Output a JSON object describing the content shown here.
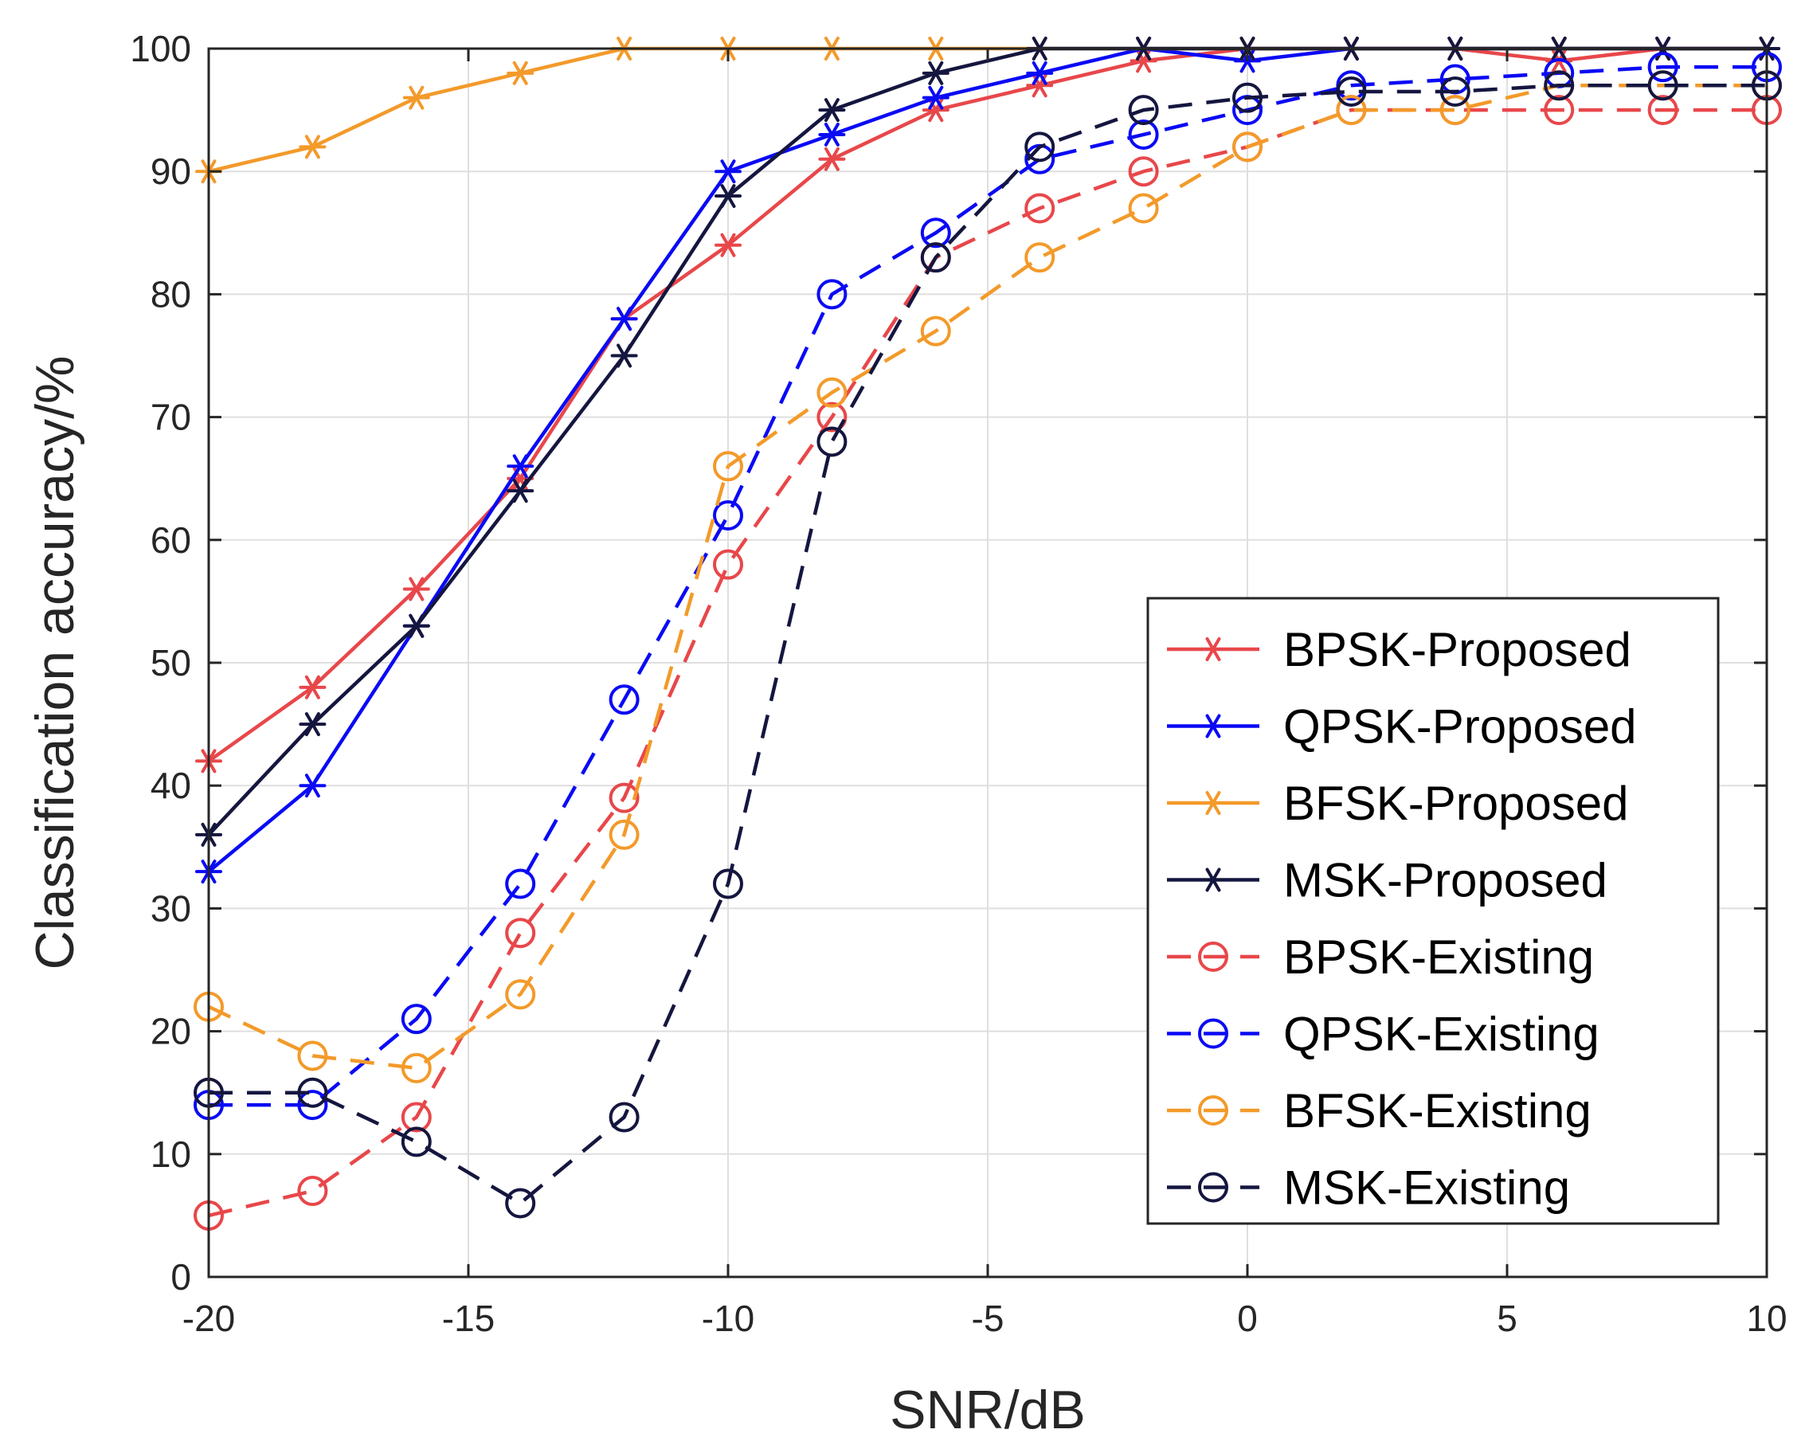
{
  "chart_data": {
    "type": "line",
    "title": "",
    "xlabel": "SNR/dB",
    "ylabel": "Classification accuracy/%",
    "xlim": [
      -20,
      10
    ],
    "ylim": [
      0,
      100
    ],
    "xticks": [
      -20,
      -15,
      -10,
      -5,
      0,
      5,
      10
    ],
    "yticks": [
      0,
      10,
      20,
      30,
      40,
      50,
      60,
      70,
      80,
      90,
      100
    ],
    "grid": true,
    "legend_position": "bottom-right",
    "x": [
      -20,
      -18,
      -16,
      -14,
      -12,
      -10,
      -8,
      -6,
      -4,
      -2,
      0,
      2,
      4,
      6,
      8,
      10
    ],
    "series": [
      {
        "name": "BPSK-Proposed",
        "color": "#e8474a",
        "marker": "asterisk",
        "dash": "solid",
        "values": [
          42,
          48,
          56,
          65,
          78,
          84,
          91,
          95,
          97,
          99,
          100,
          100,
          100,
          99,
          100,
          100
        ]
      },
      {
        "name": "QPSK-Proposed",
        "color": "#0a0af5",
        "marker": "asterisk",
        "dash": "solid",
        "values": [
          33,
          40,
          53,
          66,
          78,
          90,
          93,
          96,
          98,
          100,
          99,
          100,
          100,
          100,
          100,
          100
        ]
      },
      {
        "name": "BFSK-Proposed",
        "color": "#f39a2a",
        "marker": "asterisk",
        "dash": "solid",
        "values": [
          90,
          92,
          96,
          98,
          100,
          100,
          100,
          100,
          100,
          100,
          100,
          100,
          100,
          100,
          100,
          100
        ]
      },
      {
        "name": "MSK-Proposed",
        "color": "#15163f",
        "marker": "asterisk",
        "dash": "solid",
        "values": [
          36,
          45,
          53,
          64,
          75,
          88,
          95,
          98,
          100,
          100,
          100,
          100,
          100,
          100,
          100,
          100
        ]
      },
      {
        "name": "BPSK-Existing",
        "color": "#e8474a",
        "marker": "circle",
        "dash": "dashed",
        "values": [
          5,
          7,
          13,
          28,
          39,
          58,
          70,
          83,
          87,
          90,
          92,
          95,
          95,
          95,
          95,
          95
        ]
      },
      {
        "name": "QPSK-Existing",
        "color": "#0a0af5",
        "marker": "circle",
        "dash": "dashed",
        "values": [
          14,
          14,
          21,
          32,
          47,
          62,
          80,
          85,
          91,
          93,
          95,
          97,
          97.5,
          98,
          98.5,
          98.5
        ]
      },
      {
        "name": "BFSK-Existing",
        "color": "#f39a2a",
        "marker": "circle",
        "dash": "dashed",
        "values": [
          22,
          18,
          17,
          23,
          36,
          66,
          72,
          77,
          83,
          87,
          92,
          95,
          95,
          97,
          97,
          97
        ]
      },
      {
        "name": "MSK-Existing",
        "color": "#15163f",
        "marker": "circle",
        "dash": "dashed",
        "values": [
          15,
          15,
          11,
          6,
          13,
          32,
          68,
          83,
          92,
          95,
          96,
          96.5,
          96.5,
          97,
          97,
          97
        ]
      }
    ]
  }
}
